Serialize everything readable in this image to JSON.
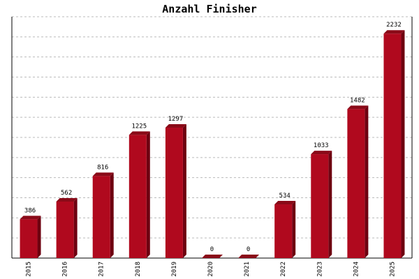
{
  "chart_data": {
    "type": "bar",
    "title": "Anzahl Finisher",
    "categories": [
      "2015",
      "2016",
      "2017",
      "2018",
      "2019",
      "2020",
      "2021",
      "2022",
      "2023",
      "2024",
      "2025"
    ],
    "values": [
      386,
      562,
      816,
      1225,
      1297,
      0,
      0,
      534,
      1033,
      1482,
      2232
    ],
    "color": "#b0091e",
    "ylim": [
      0,
      2400
    ],
    "yticks": [
      0,
      200,
      400,
      600,
      800,
      1000,
      1200,
      1400,
      1600,
      1800,
      2000,
      2200,
      2400
    ],
    "grid": true
  }
}
